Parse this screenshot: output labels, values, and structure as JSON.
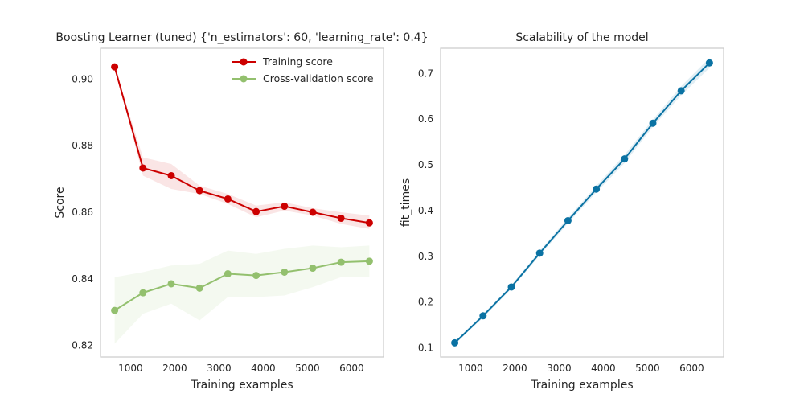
{
  "chart_data": [
    {
      "type": "line",
      "title": "Boosting Learner (tuned) {'n_estimators': 60, 'learning_rate': 0.4}",
      "xlabel": "Training examples",
      "ylabel": "Score",
      "xlim": [
        320,
        6720
      ],
      "ylim": [
        0.8165,
        0.9093
      ],
      "xticks": [
        1000,
        2000,
        3000,
        4000,
        5000,
        6000
      ],
      "yticks": [
        0.82,
        0.84,
        0.86,
        0.88,
        0.9
      ],
      "ytick_labels": [
        "0.82",
        "0.84",
        "0.86",
        "0.88",
        "0.90"
      ],
      "grid": false,
      "legend_position": "top-right",
      "x": [
        640,
        1280,
        1920,
        2560,
        3200,
        3840,
        4480,
        5120,
        5760,
        6400
      ],
      "series": [
        {
          "name": "Training score",
          "color": "#cc0000",
          "values": [
            0.9037,
            0.8733,
            0.871,
            0.8665,
            0.864,
            0.8602,
            0.8618,
            0.86,
            0.8582,
            0.8568
          ],
          "lower": [
            0.9037,
            0.871,
            0.867,
            0.8655,
            0.8625,
            0.8585,
            0.8605,
            0.859,
            0.8565,
            0.855
          ],
          "upper": [
            0.9037,
            0.8765,
            0.8745,
            0.868,
            0.8655,
            0.862,
            0.863,
            0.8612,
            0.86,
            0.859
          ]
        },
        {
          "name": "Cross-validation score",
          "color": "#93c06e",
          "values": [
            0.8305,
            0.8358,
            0.8385,
            0.8372,
            0.8415,
            0.841,
            0.842,
            0.8432,
            0.845,
            0.8453
          ],
          "lower": [
            0.8205,
            0.8295,
            0.8325,
            0.8275,
            0.8345,
            0.8345,
            0.835,
            0.8375,
            0.8405,
            0.8405
          ],
          "upper": [
            0.8405,
            0.842,
            0.844,
            0.8445,
            0.8485,
            0.8475,
            0.849,
            0.85,
            0.8495,
            0.85
          ]
        }
      ]
    },
    {
      "type": "line",
      "title": "Scalability of the model",
      "xlabel": "Training examples",
      "ylabel": "fit_times",
      "xlim": [
        320,
        6720
      ],
      "ylim": [
        0.08,
        0.755
      ],
      "xticks": [
        1000,
        2000,
        3000,
        4000,
        5000,
        6000
      ],
      "yticks": [
        0.1,
        0.2,
        0.3,
        0.4,
        0.5,
        0.6,
        0.7
      ],
      "ytick_labels": [
        "0.1",
        "0.2",
        "0.3",
        "0.4",
        "0.5",
        "0.6",
        "0.7"
      ],
      "grid": false,
      "x": [
        640,
        1280,
        1920,
        2560,
        3200,
        3840,
        4480,
        5120,
        5760,
        6400
      ],
      "series": [
        {
          "color": "#0a72a3",
          "values": [
            0.111,
            0.17,
            0.233,
            0.307,
            0.378,
            0.447,
            0.513,
            0.591,
            0.662,
            0.723
          ],
          "lower": [
            0.108,
            0.166,
            0.229,
            0.302,
            0.372,
            0.44,
            0.504,
            0.583,
            0.652,
            0.712
          ],
          "upper": [
            0.114,
            0.174,
            0.237,
            0.312,
            0.384,
            0.454,
            0.522,
            0.599,
            0.672,
            0.734
          ]
        }
      ]
    }
  ]
}
